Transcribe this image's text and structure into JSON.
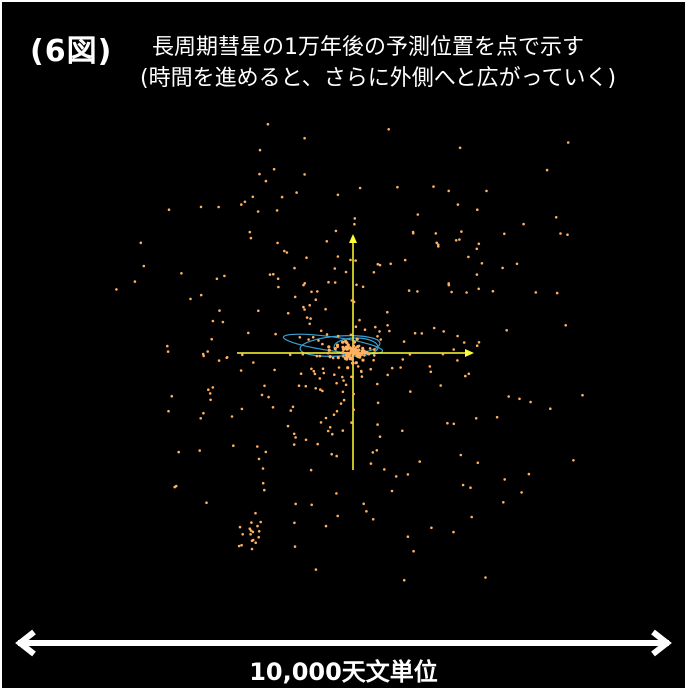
{
  "figure": {
    "label": "(6図)",
    "title_line1": "長周期彗星の1万年後の予測位置を点で示す",
    "title_line2": "(時間を進めると、さらに外側へと広がっていく)",
    "scale_label": "10,000天文単位"
  },
  "colors": {
    "background": "#000000",
    "text": "#ffffff",
    "axes": "#ffff33",
    "points": "#ffb060",
    "orbit": "#3aa0d0"
  }
}
